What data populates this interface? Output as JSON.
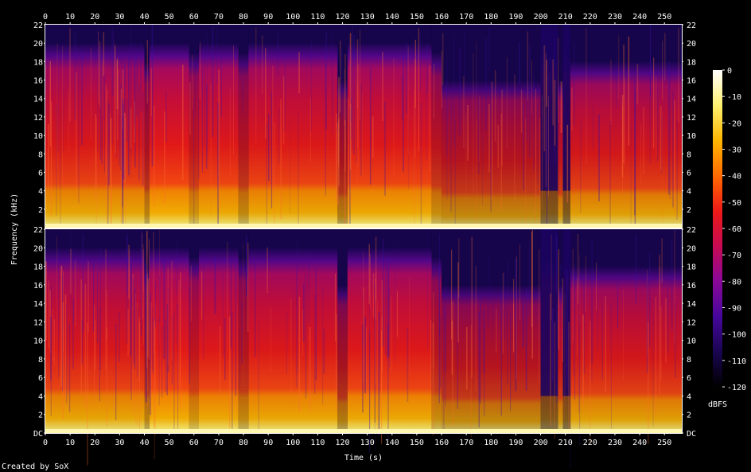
{
  "chart_data": {
    "type": "heatmap",
    "title": "",
    "xlabel": "Time (s)",
    "ylabel": "Frequency (kHz)",
    "xlim": [
      0,
      257
    ],
    "x_ticks": [
      0,
      10,
      20,
      30,
      40,
      50,
      60,
      70,
      80,
      90,
      100,
      110,
      120,
      130,
      140,
      150,
      160,
      170,
      180,
      190,
      200,
      210,
      220,
      230,
      240,
      250
    ],
    "channels": [
      {
        "name": "",
        "ylim": [
          0,
          22
        ],
        "y_ticks": [
          {
            "value": 2,
            "label": "2"
          },
          {
            "value": 4,
            "label": "4"
          },
          {
            "value": 6,
            "label": "6"
          },
          {
            "value": 8,
            "label": "8"
          },
          {
            "value": 10,
            "label": "10"
          },
          {
            "value": 12,
            "label": "12"
          },
          {
            "value": 14,
            "label": "14"
          },
          {
            "value": 16,
            "label": "16"
          },
          {
            "value": 18,
            "label": "18"
          },
          {
            "value": 20,
            "label": "20"
          },
          {
            "value": 22,
            "label": "22"
          }
        ]
      },
      {
        "name": "",
        "ylim": [
          0,
          22
        ],
        "y_ticks": [
          {
            "value": 0,
            "label": "DC"
          },
          {
            "value": 2,
            "label": "2"
          },
          {
            "value": 4,
            "label": "4"
          },
          {
            "value": 6,
            "label": "6"
          },
          {
            "value": 8,
            "label": "8"
          },
          {
            "value": 10,
            "label": "10"
          },
          {
            "value": 12,
            "label": "12"
          },
          {
            "value": 14,
            "label": "14"
          },
          {
            "value": 16,
            "label": "16"
          },
          {
            "value": 18,
            "label": "18"
          },
          {
            "value": 20,
            "label": "20"
          },
          {
            "value": 22,
            "label": "22"
          }
        ]
      }
    ],
    "colorbar": {
      "unit": "dBFS",
      "range": [
        -120,
        0
      ],
      "ticks": [
        0,
        -10,
        -20,
        -30,
        -40,
        -50,
        -60,
        -70,
        -80,
        -90,
        -100,
        -110,
        -120
      ],
      "colors": [
        "#000000",
        "#1a0552",
        "#46079c",
        "#8a0898",
        "#c70a52",
        "#ee1a17",
        "#ff6a00",
        "#ffb600",
        "#fff070",
        "#ffffff"
      ]
    },
    "segments": [
      {
        "t0": 0,
        "t1": 40,
        "top_khz": 20,
        "level": 0.85
      },
      {
        "t0": 40,
        "t1": 42,
        "top_khz": 18,
        "level": 0.55
      },
      {
        "t0": 42,
        "t1": 58,
        "top_khz": 20,
        "level": 0.9
      },
      {
        "t0": 58,
        "t1": 62,
        "top_khz": 19,
        "level": 0.7
      },
      {
        "t0": 62,
        "t1": 78,
        "top_khz": 20,
        "level": 0.88
      },
      {
        "t0": 78,
        "t1": 82,
        "top_khz": 19,
        "level": 0.6
      },
      {
        "t0": 82,
        "t1": 118,
        "top_khz": 20,
        "level": 0.86
      },
      {
        "t0": 118,
        "t1": 122,
        "top_khz": 16,
        "level": 0.5
      },
      {
        "t0": 122,
        "t1": 156,
        "top_khz": 20,
        "level": 0.87
      },
      {
        "t0": 156,
        "t1": 160,
        "top_khz": 19,
        "level": 0.65
      },
      {
        "t0": 160,
        "t1": 200,
        "top_khz": 16,
        "level": 0.62
      },
      {
        "t0": 200,
        "t1": 207,
        "top_khz": 19,
        "level": 0.2
      },
      {
        "t0": 207,
        "t1": 209,
        "top_khz": 16,
        "level": 0.7
      },
      {
        "t0": 209,
        "t1": 212,
        "top_khz": 19,
        "level": 0.2
      },
      {
        "t0": 212,
        "t1": 257,
        "top_khz": 18,
        "level": 0.8
      }
    ]
  },
  "footer": {
    "credit": "Created by SoX"
  }
}
